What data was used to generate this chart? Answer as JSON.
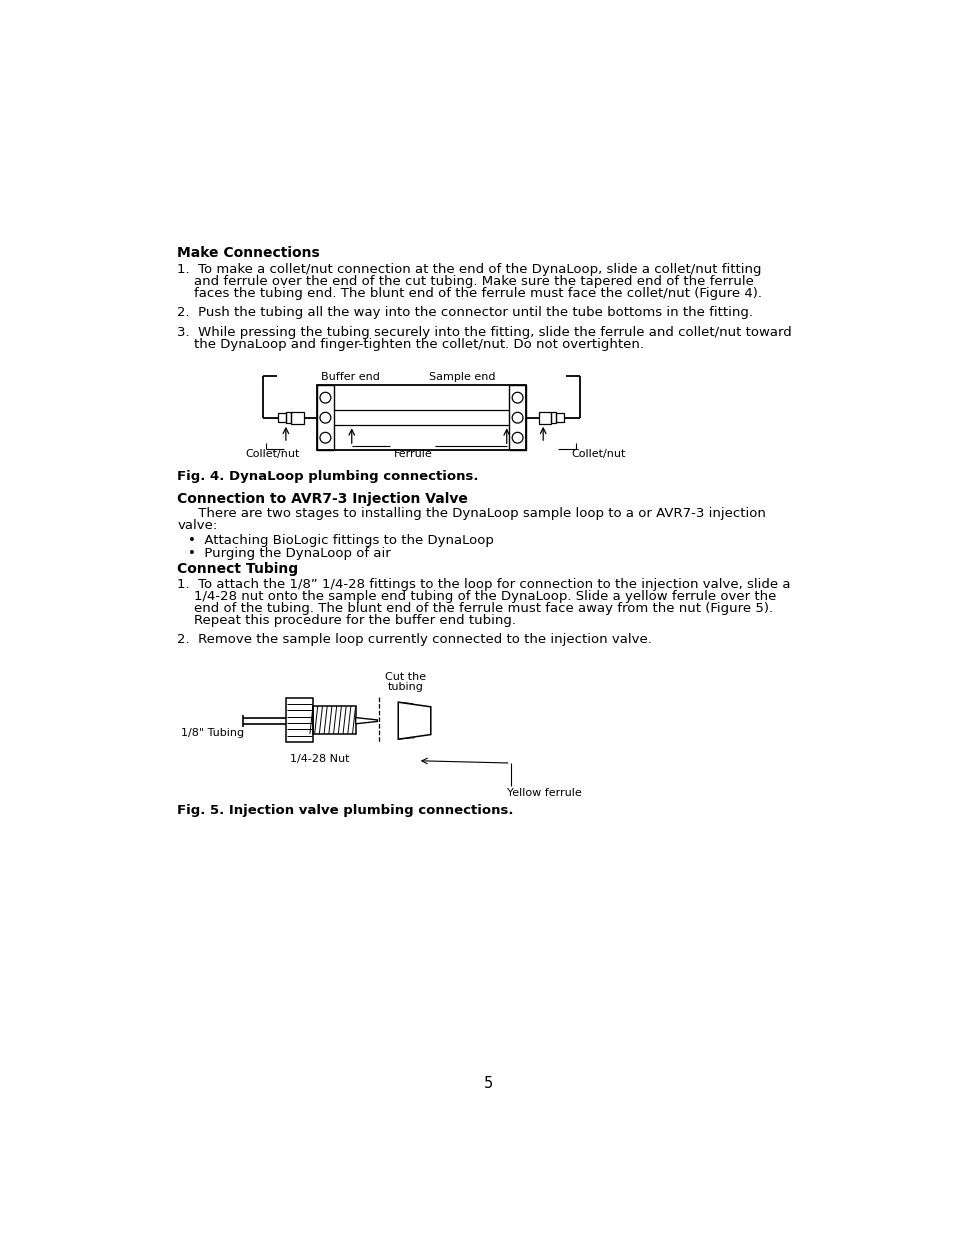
{
  "background_color": "#ffffff",
  "page_number": "5",
  "section1_heading": "Make Connections",
  "fig4_caption": "Fig. 4. DynaLoop plumbing connections.",
  "section2_heading": "Connection to AVR7-3 Injection Valve",
  "section2_bullets": [
    "Attaching BioLogic fittings to the DynaLoop",
    "Purging the DynaLoop of air"
  ],
  "section3_heading": "Connect Tubing",
  "fig5_caption": "Fig. 5. Injection valve plumbing connections.",
  "text_color": "#000000",
  "body_fontsize": 9.5,
  "heading_fontsize": 10.0,
  "small_fontsize": 8.0,
  "page_num_fontsize": 10.5
}
